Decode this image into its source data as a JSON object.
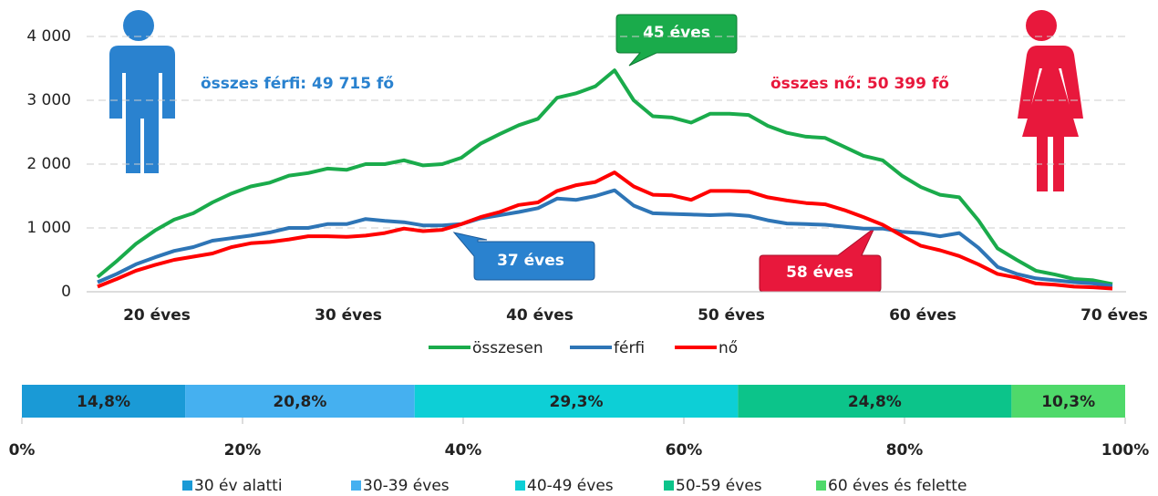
{
  "chart_data": [
    {
      "type": "line",
      "categories": [
        null,
        null,
        null,
        "20 éves",
        null,
        null,
        null,
        null,
        null,
        null,
        null,
        null,
        null,
        "30 éves",
        null,
        null,
        null,
        null,
        null,
        null,
        null,
        null,
        null,
        "40 éves",
        null,
        null,
        null,
        null,
        null,
        null,
        null,
        null,
        null,
        "50 éves",
        null,
        null,
        null,
        null,
        null,
        null,
        null,
        null,
        null,
        "60 éves",
        null,
        null,
        null,
        null,
        null,
        null,
        null,
        null,
        null,
        "70 éves"
      ],
      "series": [
        {
          "name": "összesen",
          "color": "#1aab4b",
          "values": [
            230,
            480,
            750,
            960,
            1130,
            1230,
            1400,
            1540,
            1650,
            1710,
            1820,
            1860,
            1930,
            1910,
            2000,
            2000,
            2060,
            1980,
            2000,
            2100,
            2320,
            2470,
            2610,
            2710,
            3040,
            3110,
            3220,
            3470,
            3000,
            2750,
            2730,
            2650,
            2790,
            2790,
            2770,
            2600,
            2490,
            2430,
            2410,
            2270,
            2130,
            2060,
            1820,
            1640,
            1520,
            1480,
            1120,
            680,
            500,
            330,
            270,
            200,
            180,
            120
          ]
        },
        {
          "name": "férfi",
          "color": "#2e75b6",
          "values": [
            150,
            280,
            430,
            540,
            640,
            700,
            800,
            840,
            880,
            930,
            1000,
            1000,
            1060,
            1060,
            1140,
            1110,
            1090,
            1040,
            1040,
            1060,
            1150,
            1200,
            1250,
            1310,
            1460,
            1440,
            1500,
            1590,
            1350,
            1230,
            1220,
            1210,
            1200,
            1210,
            1190,
            1120,
            1070,
            1060,
            1050,
            1020,
            990,
            990,
            940,
            920,
            870,
            920,
            690,
            390,
            280,
            210,
            180,
            150,
            130,
            90
          ]
        },
        {
          "name": "nő",
          "color": "#ff0000",
          "values": [
            80,
            200,
            330,
            420,
            500,
            550,
            600,
            700,
            760,
            780,
            820,
            870,
            870,
            860,
            880,
            920,
            990,
            950,
            970,
            1060,
            1170,
            1250,
            1360,
            1400,
            1580,
            1670,
            1720,
            1870,
            1650,
            1520,
            1510,
            1440,
            1580,
            1580,
            1570,
            1480,
            1430,
            1390,
            1370,
            1280,
            1170,
            1050,
            880,
            720,
            650,
            560,
            430,
            280,
            220,
            130,
            110,
            80,
            70,
            50
          ]
        }
      ],
      "ylim": [
        0,
        4000
      ],
      "yticks": [
        0,
        {
          "value": 1000,
          "label": "1 000"
        },
        {
          "value": 2000,
          "label": "2 000"
        },
        {
          "value": 3000,
          "label": "3 000"
        },
        {
          "value": 4000,
          "label": "4 000"
        }
      ],
      "grid": true,
      "annotations": [
        "45 éves",
        "37 éves",
        "58 éves",
        "összes férfi: 49 715 fő",
        "összes nő: 50 399 fő"
      ]
    },
    {
      "type": "stacked_bar",
      "series": [
        {
          "name": "30 év alatti",
          "color": "#1a9ad6",
          "values": [
            14.8
          ],
          "value_labels": [
            "14,8%"
          ]
        },
        {
          "name": "30-39 éves",
          "color": "#45b0f0",
          "values": [
            20.8
          ],
          "value_labels": [
            "20,8%"
          ]
        },
        {
          "name": "40-49 éves",
          "color": "#0dcfd6",
          "values": [
            29.3
          ],
          "value_labels": [
            "29,3%"
          ]
        },
        {
          "name": "50-59 éves",
          "color": "#0cc48a",
          "values": [
            24.8
          ],
          "value_labels": [
            "24,8%"
          ]
        },
        {
          "name": "60 éves és felette",
          "color": "#4fd96a",
          "values": [
            10.3
          ],
          "value_labels": [
            "10,3%"
          ]
        }
      ],
      "xlim": [
        0,
        100
      ],
      "xticks": [
        {
          "value": 0,
          "label": "0%"
        },
        {
          "value": 20,
          "label": "20%"
        },
        {
          "value": 40,
          "label": "40%"
        },
        {
          "value": 60,
          "label": "60%"
        },
        {
          "value": 80,
          "label": "80%"
        },
        {
          "value": 100,
          "label": "100%"
        }
      ]
    }
  ]
}
